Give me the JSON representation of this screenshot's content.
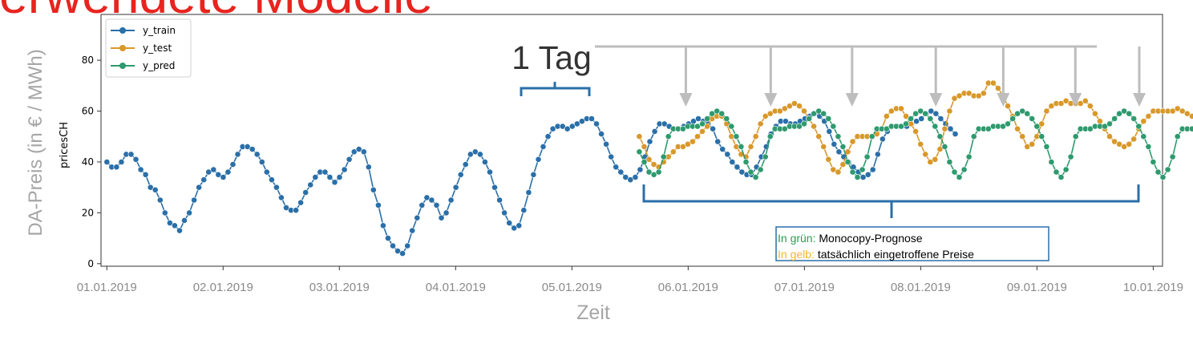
{
  "slide": {
    "title": "Verwendete Modelle"
  },
  "annotations": {
    "day_label": "1 Tag",
    "note_green_prefix": "In grün: ",
    "note_green_text": "Monocopy-Prognose",
    "note_yellow_prefix": "In gelb: ",
    "note_yellow_text": "tatsächlich eingetroffene Preise"
  },
  "colors": {
    "train": "#2a6fa8",
    "test": "#d8982a",
    "pred": "#2e9a6e",
    "note_green": "#2e9a50",
    "note_yellow": "#f1b82a",
    "arrow": "#bdbdbd",
    "title": "#e8241f"
  },
  "chart_data": {
    "type": "line",
    "xlabel_outer": "Zeit",
    "ylabel_outer": "DA-Preis (in € / MWh)",
    "ylabel_inner": "pricesCH",
    "x_ticks": [
      "01.01.2019",
      "02.01.2019",
      "03.01.2019",
      "04.01.2019",
      "05.01.2019",
      "06.01.2019",
      "07.01.2019",
      "08.01.2019",
      "09.01.2019",
      "10.01.2019"
    ],
    "y_ticks": [
      0,
      20,
      40,
      60,
      80
    ],
    "xlim": [
      -0.05,
      9.08
    ],
    "ylim": [
      -1,
      98
    ],
    "legend_position": "top-left",
    "grid": false,
    "series": [
      {
        "name": "y_train",
        "color": "#2a6fa8",
        "x_start": 0,
        "x_step": 0.0417,
        "values": [
          40,
          38,
          38,
          40,
          43,
          43,
          41,
          37,
          35,
          30,
          29,
          25,
          20,
          16,
          15,
          13,
          17,
          20,
          25,
          30,
          33,
          36,
          37,
          35,
          34,
          36,
          39,
          43,
          46,
          46,
          45,
          43,
          40,
          36,
          33,
          30,
          26,
          22,
          21,
          21,
          24,
          28,
          31,
          34,
          36,
          36,
          34,
          32,
          34,
          37,
          41,
          44,
          45,
          44,
          38,
          29,
          23,
          15,
          10,
          7,
          5,
          4,
          7,
          13,
          18,
          23,
          26,
          25,
          23,
          18,
          20,
          25,
          30,
          35,
          39,
          43,
          44,
          43,
          40,
          36,
          30,
          25,
          20,
          16,
          14,
          15,
          21,
          28,
          35,
          41,
          46,
          50,
          53,
          54,
          54,
          53,
          54,
          55,
          56,
          57,
          57,
          55,
          51,
          47,
          42,
          38,
          36,
          34,
          33,
          34,
          37,
          42,
          48,
          52,
          55,
          55,
          54,
          53,
          53,
          54,
          55,
          56,
          57,
          56,
          55,
          53,
          48,
          45,
          43,
          40,
          38,
          36,
          35,
          35,
          38,
          42,
          46,
          51,
          54,
          56,
          56,
          55,
          55,
          56,
          57,
          58,
          59,
          58,
          56,
          52,
          47,
          44,
          42,
          40,
          38,
          36,
          34,
          35,
          37,
          43,
          49,
          52,
          54,
          54,
          54,
          54,
          55,
          56,
          57,
          59,
          60,
          59,
          57,
          55,
          53,
          51
        ]
      },
      {
        "name": "y_test",
        "color": "#d8982a",
        "x_start": 4.58,
        "x_step": 0.0417,
        "values": [
          50,
          46,
          41,
          39,
          38,
          40,
          42,
          44,
          46,
          46,
          47,
          48,
          50,
          52,
          54,
          57,
          58,
          58,
          55,
          50,
          46,
          43,
          42,
          46,
          50,
          55,
          58,
          59,
          60,
          60,
          61,
          62,
          63,
          62,
          60,
          57,
          54,
          50,
          46,
          41,
          37,
          36,
          39,
          44,
          48,
          50,
          50,
          50,
          50,
          51,
          53,
          58,
          60,
          61,
          61,
          58,
          55,
          52,
          47,
          43,
          40,
          41,
          45,
          53,
          60,
          65,
          66,
          67,
          67,
          66,
          66,
          67,
          71,
          71,
          69,
          66,
          62,
          58,
          53,
          50,
          46,
          47,
          50,
          55,
          60,
          62,
          63,
          63,
          64,
          63,
          63,
          63,
          64,
          62,
          59,
          56,
          53,
          50,
          48,
          47,
          46,
          47,
          49,
          53,
          56,
          58,
          60,
          60,
          60,
          60,
          60,
          61,
          60,
          59,
          58,
          55,
          52,
          50,
          47,
          44,
          43,
          46,
          52,
          60,
          68,
          73,
          76,
          78,
          79,
          79,
          80,
          80,
          81,
          84,
          88,
          95,
          93,
          84,
          74,
          68,
          64,
          62,
          60,
          60
        ]
      },
      {
        "name": "y_pred",
        "color": "#2e9a6e",
        "x_start": 4.58,
        "x_step": 0.0417,
        "values": [
          44,
          40,
          36,
          35,
          36,
          42,
          50,
          53,
          53,
          53,
          54,
          54,
          54,
          55,
          57,
          59,
          60,
          59,
          57,
          54,
          50,
          46,
          40,
          36,
          34,
          37,
          42,
          50,
          53,
          53,
          53,
          54,
          54,
          54,
          55,
          57,
          59,
          60,
          59,
          57,
          54,
          50,
          46,
          40,
          36,
          34,
          37,
          42,
          50,
          53,
          53,
          53,
          54,
          54,
          54,
          55,
          57,
          59,
          60,
          59,
          57,
          54,
          50,
          46,
          40,
          36,
          34,
          37,
          42,
          50,
          53,
          53,
          53,
          54,
          54,
          54,
          55,
          57,
          59,
          60,
          59,
          57,
          54,
          50,
          46,
          40,
          36,
          34,
          37,
          42,
          50,
          53,
          53,
          53,
          54,
          54,
          54,
          55,
          57,
          59,
          60,
          59,
          57,
          54,
          50,
          46,
          40,
          36,
          34,
          37,
          42,
          50,
          53,
          53,
          53,
          54,
          54,
          54,
          55,
          57,
          59,
          60,
          59,
          57,
          54,
          50,
          46,
          40,
          36,
          34,
          37,
          42,
          50,
          53,
          53,
          53,
          54,
          54,
          54,
          55,
          57,
          59,
          60,
          59,
          57,
          55,
          52,
          51
        ]
      }
    ],
    "arrow_targets_x": [
      4.98,
      5.71,
      6.41,
      7.13,
      7.71,
      8.33,
      8.88,
      9.56
    ]
  }
}
